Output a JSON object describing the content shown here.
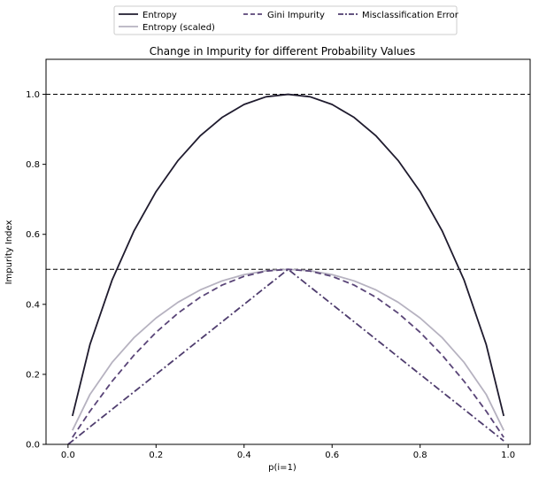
{
  "chart_data": {
    "type": "line",
    "title": "Change in Impurity for different Probability Values",
    "xlabel": "p(i=1)",
    "ylabel": "Impurity Index",
    "xlim": [
      -0.05,
      1.05
    ],
    "ylim": [
      0.0,
      1.1
    ],
    "xticks": [
      "0.0",
      "0.2",
      "0.4",
      "0.6",
      "0.8",
      "1.0"
    ],
    "yticks": [
      "0.0",
      "0.2",
      "0.4",
      "0.6",
      "0.8",
      "1.0"
    ],
    "grid": false,
    "legend_placement": "top-center, outside plot (3 columns)",
    "reference_lines": [
      {
        "y": 1.0,
        "style": "dashed",
        "color": "#000000"
      },
      {
        "y": 0.5,
        "style": "dashed",
        "color": "#000000"
      }
    ],
    "series": [
      {
        "name": "Entropy",
        "color": "#1f1b2e",
        "style": "solid",
        "x": [
          0.01,
          0.05,
          0.1,
          0.15,
          0.2,
          0.25,
          0.3,
          0.35,
          0.4,
          0.45,
          0.5,
          0.55,
          0.6,
          0.65,
          0.7,
          0.75,
          0.8,
          0.85,
          0.9,
          0.95,
          0.99
        ],
        "values": [
          0.081,
          0.286,
          0.469,
          0.61,
          0.722,
          0.811,
          0.881,
          0.934,
          0.971,
          0.993,
          1.0,
          0.993,
          0.971,
          0.934,
          0.881,
          0.811,
          0.722,
          0.61,
          0.469,
          0.286,
          0.081
        ]
      },
      {
        "name": "Entropy (scaled)",
        "color": "#b6b2c0",
        "style": "solid",
        "x": [
          0.01,
          0.05,
          0.1,
          0.15,
          0.2,
          0.25,
          0.3,
          0.35,
          0.4,
          0.45,
          0.5,
          0.55,
          0.6,
          0.65,
          0.7,
          0.75,
          0.8,
          0.85,
          0.9,
          0.95,
          0.99
        ],
        "values": [
          0.04,
          0.143,
          0.234,
          0.305,
          0.361,
          0.406,
          0.441,
          0.467,
          0.485,
          0.496,
          0.5,
          0.496,
          0.485,
          0.467,
          0.441,
          0.406,
          0.361,
          0.305,
          0.234,
          0.143,
          0.04
        ]
      },
      {
        "name": "Gini Impurity",
        "color": "#5a4578",
        "style": "dashed",
        "x": [
          0.01,
          0.05,
          0.1,
          0.15,
          0.2,
          0.25,
          0.3,
          0.35,
          0.4,
          0.45,
          0.5,
          0.55,
          0.6,
          0.65,
          0.7,
          0.75,
          0.8,
          0.85,
          0.9,
          0.95,
          0.99
        ],
        "values": [
          0.02,
          0.095,
          0.18,
          0.255,
          0.32,
          0.375,
          0.42,
          0.455,
          0.48,
          0.495,
          0.5,
          0.495,
          0.48,
          0.455,
          0.42,
          0.375,
          0.32,
          0.255,
          0.18,
          0.095,
          0.02
        ]
      },
      {
        "name": "Misclassification Error",
        "color": "#4f3d6e",
        "style": "dashdot",
        "x": [
          0.0,
          0.5,
          0.99
        ],
        "values": [
          0.0,
          0.5,
          0.01
        ]
      }
    ]
  }
}
